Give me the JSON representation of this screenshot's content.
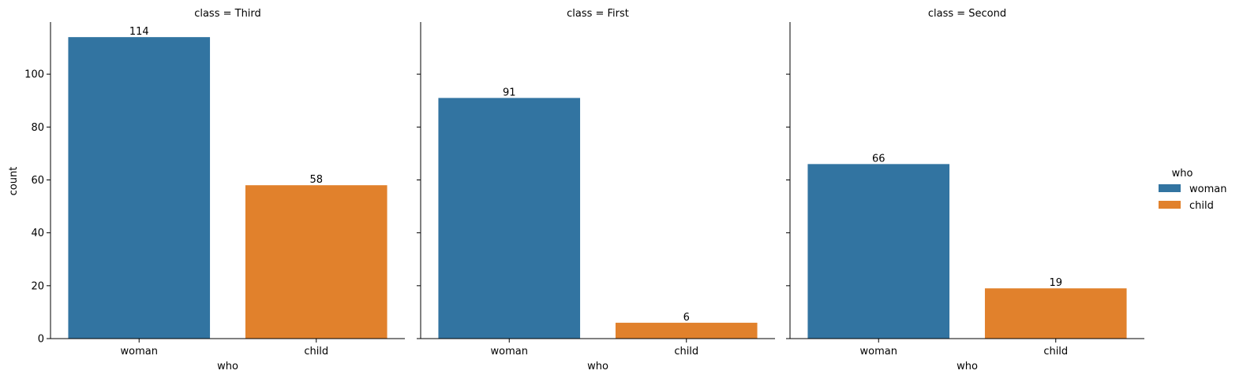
{
  "colors": {
    "woman": "#3274a1",
    "child": "#e1812c",
    "axis": "#000000"
  },
  "chart_data": {
    "type": "bar",
    "facet_label": "class",
    "categories": [
      "woman",
      "child"
    ],
    "xlabel": "who",
    "ylabel": "count",
    "ylim": [
      0,
      119.7
    ],
    "yticks": [
      0,
      20,
      40,
      60,
      80,
      100
    ],
    "legend": {
      "title": "who",
      "entries": [
        "woman",
        "child"
      ],
      "placement": "right"
    },
    "facets": [
      {
        "title": "class = Third",
        "values": [
          114,
          58
        ]
      },
      {
        "title": "class = First",
        "values": [
          91,
          6
        ]
      },
      {
        "title": "class = Second",
        "values": [
          66,
          19
        ]
      }
    ]
  }
}
